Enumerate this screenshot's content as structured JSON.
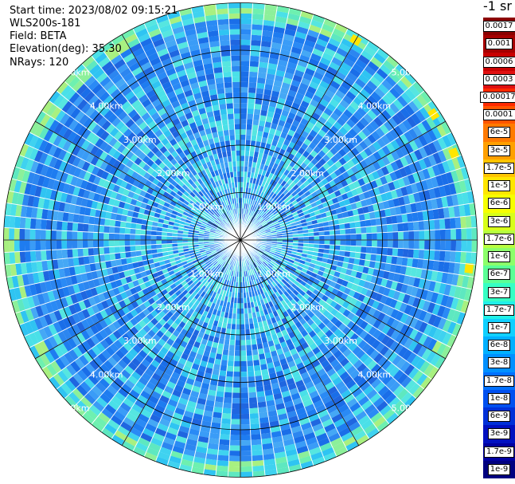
{
  "info": {
    "start_time": "Start time: 2023/08/02 09:15:21",
    "instrument": "WLS200s-181",
    "field": "Field: BETA",
    "elevation": "Elevation(deg): 35.30",
    "nrays": "NRays: 120"
  },
  "colorbar": {
    "unit": "-1 sr",
    "labels": [
      "0.0017",
      "0.001",
      "0.0006",
      "0.0003",
      "0.00017",
      "0.0001",
      "6e-5",
      "3e-5",
      "1.7e-5",
      "1e-5",
      "6e-6",
      "3e-6",
      "1.7e-6",
      "1e-6",
      "6e-7",
      "3e-7",
      "1.7e-7",
      "1e-7",
      "6e-8",
      "3e-8",
      "1.7e-8",
      "1e-8",
      "6e-9",
      "3e-9",
      "1.7e-9",
      "1e-9"
    ],
    "colors": [
      "#8b0000",
      "#a50000",
      "#c80000",
      "#e01010",
      "#ff2a00",
      "#ff5500",
      "#ff7a00",
      "#ffa000",
      "#ffc400",
      "#ffe600",
      "#f6ff00",
      "#d8ff1a",
      "#b6ff40",
      "#8cff6a",
      "#5cff96",
      "#36ffc4",
      "#20f0e8",
      "#10d0ff",
      "#00b0ff",
      "#0090ff",
      "#0070ff",
      "#0050f0",
      "#0030d8",
      "#0010c0",
      "#0000a0",
      "#000080"
    ]
  },
  "chart_data": {
    "type": "heatmap",
    "projection": "polar PPI scan",
    "field": "BETA",
    "range_rings_km": [
      1.0,
      2.0,
      3.0,
      4.0,
      5.0
    ],
    "ring_labels": [
      "1.00km",
      "2.00km",
      "3.00km",
      "4.00km",
      "5.00km"
    ],
    "n_rays": 120,
    "max_range_km": 5.0,
    "spokes_deg": [
      0,
      30,
      60,
      90,
      120,
      150,
      180,
      210,
      240,
      270,
      300,
      330
    ],
    "dominant_value_range": [
      "1e-7",
      "1.7e-8"
    ],
    "outer_edge_value_range": [
      "1.7e-6",
      "1.7e-7"
    ],
    "hotspots": [
      {
        "azimuth_deg": 30,
        "range_km": 4.9,
        "value": "1e-5"
      },
      {
        "azimuth_deg": 57,
        "range_km": 4.9,
        "value": "1e-5"
      },
      {
        "azimuth_deg": 68,
        "range_km": 4.9,
        "value": "1e-5"
      },
      {
        "azimuth_deg": 97,
        "range_km": 4.9,
        "value": "1e-5"
      }
    ]
  }
}
